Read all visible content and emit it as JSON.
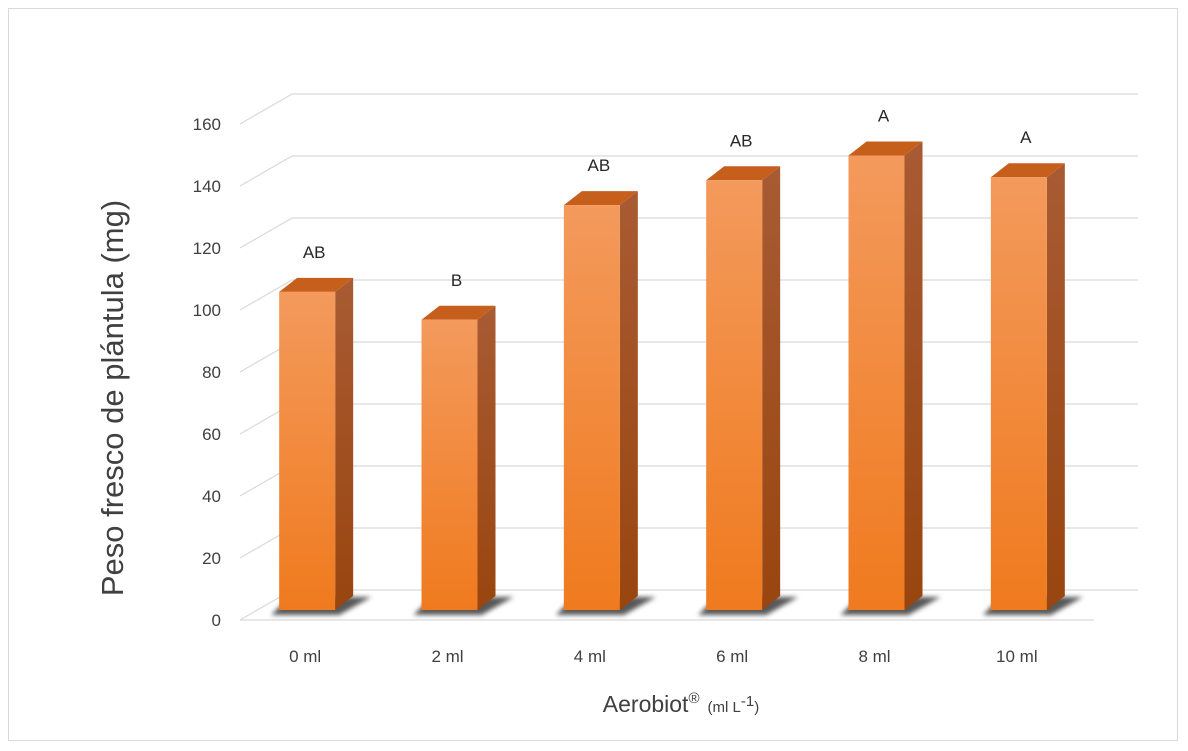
{
  "chart_data": {
    "type": "bar",
    "categories": [
      "0 ml",
      "2 ml",
      "4 ml",
      "6 ml",
      "8 ml",
      "10 ml"
    ],
    "values": [
      101,
      92,
      129,
      137,
      145,
      138
    ],
    "annotations": [
      "AB",
      "B",
      "AB",
      "AB",
      "A",
      "A"
    ],
    "ylabel": "Peso fresco de plántula (mg)",
    "xlabel_main": "Aerobiot",
    "xlabel_registered": "®",
    "xlabel_unit_before": "(ml L",
    "xlabel_unit_sup": "-1",
    "xlabel_unit_after": ")",
    "ylim": [
      0,
      160
    ],
    "yticks": [
      "0",
      "20",
      "40",
      "60",
      "80",
      "100",
      "120",
      "140",
      "160"
    ],
    "grid": true,
    "style": "3d-column",
    "colors": {
      "bar_top": "#f39a5c",
      "bar_bottom": "#f07a1e",
      "bar_side": "#b3571b",
      "bar_cap": "#c75f1c",
      "grid": "#d9d9d9",
      "shadow": "#3a3a3a"
    }
  }
}
